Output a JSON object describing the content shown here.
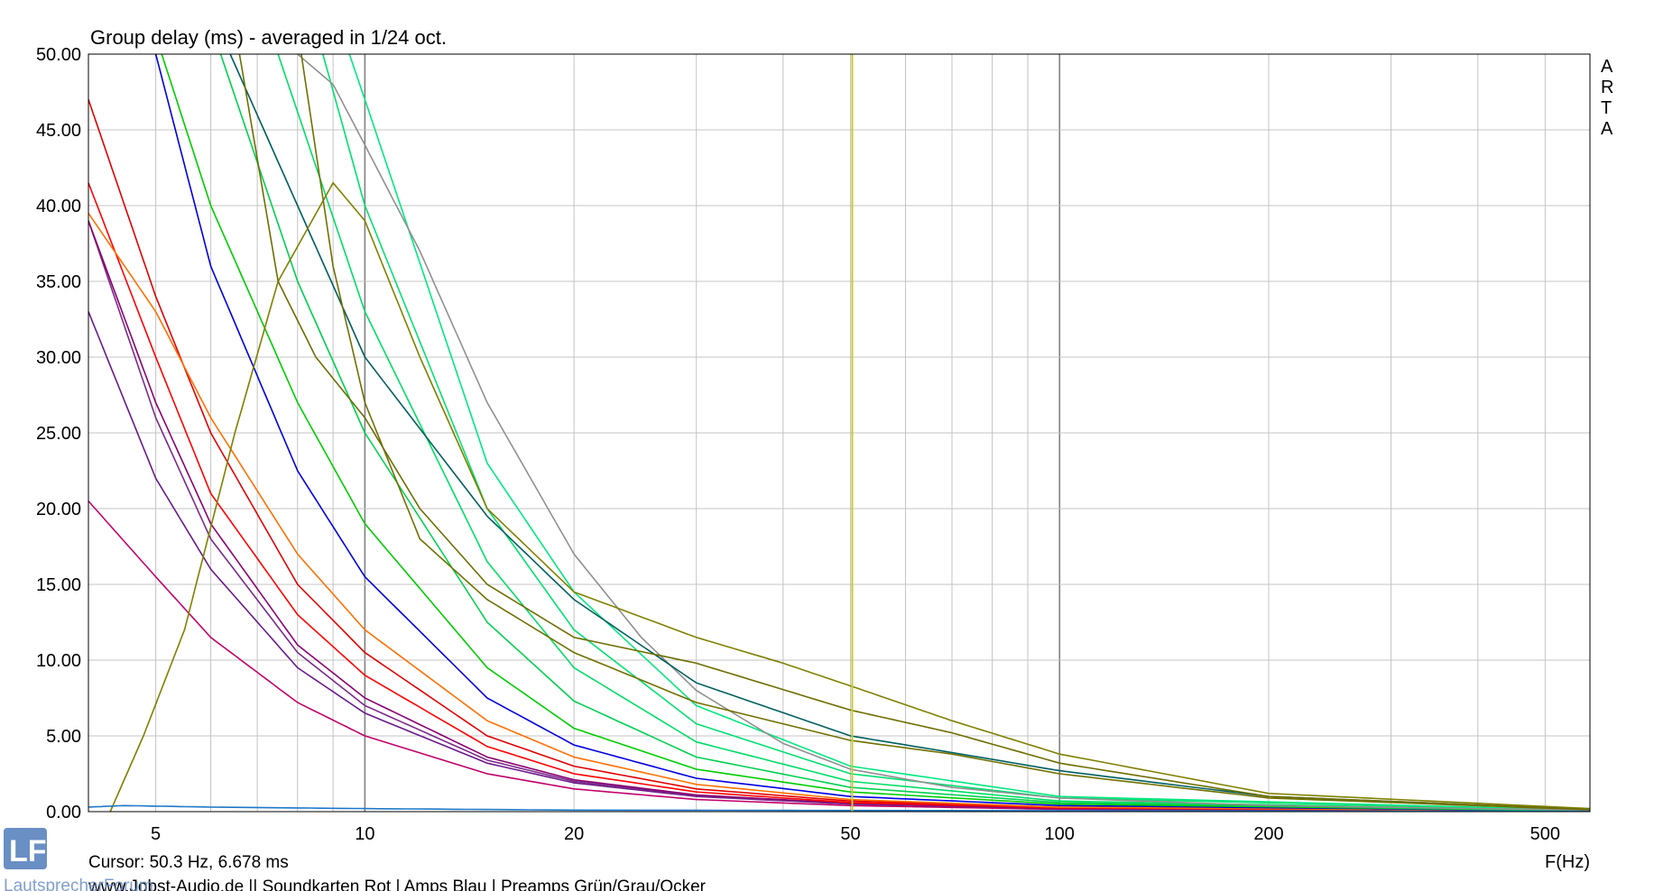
{
  "chart_data": {
    "type": "line",
    "title": "Group delay (ms) - averaged in 1/24 oct.",
    "xlabel": "F(Hz)",
    "ylabel": "",
    "x_scale": "log",
    "xlim": [
      4,
      580
    ],
    "ylim": [
      0,
      50
    ],
    "y_ticks": [
      "0.00",
      "5.00",
      "10.00",
      "15.00",
      "20.00",
      "25.00",
      "30.00",
      "35.00",
      "40.00",
      "45.00",
      "50.00"
    ],
    "x_tick_labels": [
      {
        "value": 5,
        "label": "5"
      },
      {
        "value": 10,
        "label": "10"
      },
      {
        "value": 20,
        "label": "20"
      },
      {
        "value": 50,
        "label": "50"
      },
      {
        "value": 100,
        "label": "100"
      },
      {
        "value": 200,
        "label": "200"
      },
      {
        "value": 500,
        "label": "500"
      }
    ],
    "grid": true,
    "cursor": {
      "x": 50.3,
      "y": 6.678,
      "color": "#c8c832"
    },
    "cursor_text": "Cursor: 50.3 Hz, 6.678 ms",
    "watermark": [
      "A",
      "R",
      "T",
      "A"
    ],
    "footer_text": "www.Jobst-Audio.de  ||  Soundkarten Rot | Amps Blau | Preamps Grün/Grau/Ocker",
    "logo_text": "LautsprecherForum",
    "series": [
      {
        "color": "#c0006a",
        "points": [
          [
            4,
            20.5
          ],
          [
            5,
            15.5
          ],
          [
            6,
            11.5
          ],
          [
            8,
            7.2
          ],
          [
            10,
            5
          ],
          [
            15,
            2.5
          ],
          [
            20,
            1.5
          ],
          [
            30,
            0.8
          ],
          [
            50,
            0.4
          ],
          [
            100,
            0.15
          ],
          [
            580,
            0.05
          ]
        ]
      },
      {
        "color": "#6a1a8a",
        "points": [
          [
            4,
            33
          ],
          [
            5,
            22
          ],
          [
            6,
            16
          ],
          [
            8,
            9.5
          ],
          [
            10,
            6.5
          ],
          [
            15,
            3.2
          ],
          [
            20,
            1.9
          ],
          [
            30,
            1.0
          ],
          [
            50,
            0.5
          ],
          [
            100,
            0.2
          ],
          [
            580,
            0.05
          ]
        ]
      },
      {
        "color": "#7a2a8a",
        "points": [
          [
            4,
            39
          ],
          [
            5,
            26
          ],
          [
            6,
            18
          ],
          [
            8,
            10.5
          ],
          [
            10,
            7
          ],
          [
            15,
            3.4
          ],
          [
            20,
            2.0
          ],
          [
            30,
            1.05
          ],
          [
            50,
            0.5
          ],
          [
            100,
            0.2
          ],
          [
            580,
            0.05
          ]
        ]
      },
      {
        "color": "#8a0070",
        "points": [
          [
            4,
            39
          ],
          [
            5,
            27
          ],
          [
            6,
            19
          ],
          [
            8,
            11
          ],
          [
            10,
            7.5
          ],
          [
            15,
            3.6
          ],
          [
            20,
            2.1
          ],
          [
            30,
            1.1
          ],
          [
            50,
            0.55
          ],
          [
            100,
            0.2
          ],
          [
            580,
            0.05
          ]
        ]
      },
      {
        "color": "#ff0000",
        "points": [
          [
            4,
            41.5
          ],
          [
            5,
            30
          ],
          [
            6,
            21
          ],
          [
            8,
            13
          ],
          [
            10,
            9
          ],
          [
            15,
            4.3
          ],
          [
            20,
            2.5
          ],
          [
            30,
            1.3
          ],
          [
            50,
            0.6
          ],
          [
            100,
            0.25
          ],
          [
            580,
            0.05
          ]
        ]
      },
      {
        "color": "#e00000",
        "points": [
          [
            4,
            47
          ],
          [
            5,
            34
          ],
          [
            6,
            25
          ],
          [
            8,
            15
          ],
          [
            10,
            10.5
          ],
          [
            15,
            5
          ],
          [
            20,
            3
          ],
          [
            30,
            1.5
          ],
          [
            50,
            0.7
          ],
          [
            100,
            0.3
          ],
          [
            580,
            0.05
          ]
        ]
      },
      {
        "color": "#ff7000",
        "points": [
          [
            4,
            39.5
          ],
          [
            5,
            33
          ],
          [
            6,
            26
          ],
          [
            8,
            17
          ],
          [
            10,
            12
          ],
          [
            15,
            6
          ],
          [
            20,
            3.6
          ],
          [
            30,
            1.8
          ],
          [
            50,
            0.8
          ],
          [
            100,
            0.3
          ],
          [
            580,
            0.05
          ]
        ]
      },
      {
        "color": "#0000e0",
        "points": [
          [
            5,
            50
          ],
          [
            6,
            36
          ],
          [
            8,
            22.5
          ],
          [
            10,
            15.5
          ],
          [
            15,
            7.5
          ],
          [
            20,
            4.4
          ],
          [
            30,
            2.2
          ],
          [
            50,
            1.0
          ],
          [
            100,
            0.4
          ],
          [
            580,
            0.05
          ]
        ]
      },
      {
        "color": "#00cc00",
        "points": [
          [
            5.1,
            50
          ],
          [
            6,
            40
          ],
          [
            8,
            27
          ],
          [
            10,
            19
          ],
          [
            15,
            9.5
          ],
          [
            20,
            5.5
          ],
          [
            30,
            2.8
          ],
          [
            50,
            1.3
          ],
          [
            100,
            0.5
          ],
          [
            580,
            0.05
          ]
        ]
      },
      {
        "color": "#00d050",
        "points": [
          [
            6.2,
            50
          ],
          [
            8,
            35
          ],
          [
            10,
            25
          ],
          [
            15,
            12.5
          ],
          [
            20,
            7.3
          ],
          [
            30,
            3.6
          ],
          [
            50,
            1.6
          ],
          [
            100,
            0.6
          ],
          [
            580,
            0.05
          ]
        ]
      },
      {
        "color": "#00dd66",
        "points": [
          [
            7.5,
            50
          ],
          [
            10,
            33
          ],
          [
            15,
            16.5
          ],
          [
            20,
            9.5
          ],
          [
            30,
            4.6
          ],
          [
            50,
            2.0
          ],
          [
            100,
            0.7
          ],
          [
            580,
            0.08
          ]
        ]
      },
      {
        "color": "#00e070",
        "points": [
          [
            8.7,
            50
          ],
          [
            10,
            40
          ],
          [
            15,
            20
          ],
          [
            20,
            12
          ],
          [
            30,
            5.8
          ],
          [
            50,
            2.5
          ],
          [
            100,
            0.9
          ],
          [
            580,
            0.1
          ]
        ]
      },
      {
        "color": "#00e880",
        "points": [
          [
            9.5,
            50
          ],
          [
            10,
            47
          ],
          [
            15,
            23
          ],
          [
            20,
            14.5
          ],
          [
            30,
            7
          ],
          [
            50,
            3
          ],
          [
            100,
            1.0
          ],
          [
            580,
            0.1
          ]
        ]
      },
      {
        "color": "#909090",
        "points": [
          [
            8.0,
            50
          ],
          [
            9,
            48
          ],
          [
            10,
            44
          ],
          [
            12,
            37
          ],
          [
            15,
            27
          ],
          [
            20,
            17
          ],
          [
            25,
            11.5
          ],
          [
            30,
            8
          ],
          [
            40,
            4.5
          ],
          [
            50,
            2.8
          ],
          [
            70,
            1.6
          ],
          [
            100,
            0.9
          ],
          [
            200,
            0.4
          ],
          [
            580,
            0.1
          ]
        ]
      },
      {
        "color": "#005f5f",
        "points": [
          [
            6.4,
            50
          ],
          [
            8,
            40
          ],
          [
            10,
            30
          ],
          [
            15,
            19.5
          ],
          [
            20,
            14
          ],
          [
            30,
            8.5
          ],
          [
            50,
            5
          ],
          [
            70,
            3.9
          ],
          [
            100,
            2.7
          ],
          [
            200,
            1.0
          ],
          [
            580,
            0.15
          ]
        ]
      },
      {
        "color": "#808000",
        "points": [
          [
            4.3,
            0
          ],
          [
            4.8,
            5
          ],
          [
            5.5,
            12
          ],
          [
            6.5,
            25
          ],
          [
            7.5,
            35
          ],
          [
            9,
            41.5
          ],
          [
            10,
            39
          ],
          [
            12,
            30
          ],
          [
            15,
            20
          ],
          [
            20,
            14.5
          ],
          [
            30,
            11.5
          ],
          [
            40,
            9.8
          ],
          [
            50,
            8.3
          ],
          [
            70,
            6
          ],
          [
            100,
            3.8
          ],
          [
            200,
            1.2
          ],
          [
            580,
            0.2
          ]
        ]
      },
      {
        "color": "#6e6e00",
        "points": [
          [
            6.6,
            50
          ],
          [
            7.5,
            35
          ],
          [
            8.5,
            30
          ],
          [
            10,
            26
          ],
          [
            12,
            20
          ],
          [
            15,
            15
          ],
          [
            20,
            11.5
          ],
          [
            30,
            9.8
          ],
          [
            50,
            6.7
          ],
          [
            70,
            5.2
          ],
          [
            100,
            3.2
          ],
          [
            200,
            1.0
          ],
          [
            580,
            0.15
          ]
        ]
      },
      {
        "color": "#707000",
        "points": [
          [
            8.1,
            50
          ],
          [
            9,
            36
          ],
          [
            10,
            27
          ],
          [
            12,
            18
          ],
          [
            15,
            14
          ],
          [
            20,
            10.5
          ],
          [
            30,
            7.2
          ],
          [
            50,
            4.7
          ],
          [
            70,
            3.8
          ],
          [
            100,
            2.5
          ],
          [
            200,
            0.9
          ],
          [
            580,
            0.12
          ]
        ]
      },
      {
        "color": "#1e78c8",
        "points": [
          [
            4,
            0.3
          ],
          [
            4.5,
            0.4
          ],
          [
            6,
            0.3
          ],
          [
            10,
            0.2
          ],
          [
            20,
            0.1
          ],
          [
            580,
            0.02
          ]
        ]
      }
    ]
  }
}
